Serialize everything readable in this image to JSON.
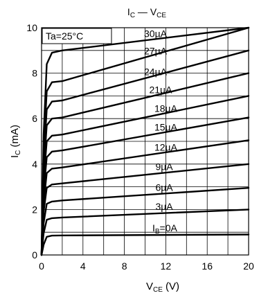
{
  "chart_data": {
    "type": "line",
    "title": "IC — VCE",
    "title_parts": {
      "main": "I",
      "main_sub": "C",
      "sep": " — V",
      "sep_sub": "CE"
    },
    "xlabel_parts": {
      "main": "V",
      "sub": "CE",
      "unit": " (V)"
    },
    "ylabel_parts": {
      "main": "I",
      "sub": "C",
      "unit": " (mA)"
    },
    "xlabel": "VCE (V)",
    "ylabel": "IC (mA)",
    "xlim": [
      0,
      20
    ],
    "ylim": [
      0,
      10
    ],
    "x_ticks": [
      "0",
      "4",
      "8",
      "12",
      "16",
      "20"
    ],
    "y_ticks": [
      "0",
      "2",
      "4",
      "6",
      "8",
      "10"
    ],
    "grid": {
      "x_step": 2,
      "y_step": 1
    },
    "condition": "Ta=25°C",
    "series": [
      {
        "name": "IB=0A",
        "label_main": "I",
        "label_sub": "B",
        "label_rest": "=0A",
        "x": [
          0,
          0.2,
          0.5,
          1,
          2,
          20
        ],
        "y": [
          0,
          0.45,
          0.8,
          0.85,
          0.86,
          0.9
        ],
        "label_x": 10.7
      },
      {
        "name": "3µA",
        "label_main": "3µA",
        "x": [
          0,
          0.2,
          0.5,
          1,
          2,
          20
        ],
        "y": [
          0,
          0.95,
          1.55,
          1.62,
          1.65,
          2.0
        ],
        "label_x": 11.0
      },
      {
        "name": "6µA",
        "label_main": "6µA",
        "x": [
          0,
          0.2,
          0.5,
          1,
          2,
          20
        ],
        "y": [
          0,
          1.4,
          2.25,
          2.35,
          2.4,
          2.95
        ],
        "label_x": 11.0
      },
      {
        "name": "9µA",
        "label_main": "9µA",
        "x": [
          0,
          0.2,
          0.5,
          1,
          2,
          20
        ],
        "y": [
          0,
          1.9,
          2.95,
          3.1,
          3.15,
          4.0
        ],
        "label_x": 11.0
      },
      {
        "name": "12µA",
        "label_main": "12µA",
        "x": [
          0,
          0.2,
          0.5,
          1,
          2,
          20
        ],
        "y": [
          0,
          2.3,
          3.6,
          3.8,
          3.85,
          5.05
        ],
        "label_x": 10.9
      },
      {
        "name": "15µA",
        "label_main": "15µA",
        "x": [
          0,
          0.2,
          0.5,
          1,
          2,
          20
        ],
        "y": [
          0,
          2.8,
          4.3,
          4.55,
          4.6,
          6.05
        ],
        "label_x": 10.9
      },
      {
        "name": "18µA",
        "label_main": "18µA",
        "x": [
          0,
          0.2,
          0.5,
          1,
          2,
          20
        ],
        "y": [
          0,
          3.3,
          5.0,
          5.25,
          5.3,
          7.0
        ],
        "label_x": 10.9
      },
      {
        "name": "21µA",
        "label_main": "21µA",
        "x": [
          0,
          0.2,
          0.5,
          1,
          2,
          20
        ],
        "y": [
          0,
          3.7,
          5.7,
          6.0,
          6.05,
          8.0
        ],
        "label_x": 10.4
      },
      {
        "name": "24µA",
        "label_main": "24µA",
        "x": [
          0,
          0.2,
          0.5,
          1,
          2,
          20
        ],
        "y": [
          0,
          4.2,
          6.4,
          6.75,
          6.8,
          9.0
        ],
        "label_x": 9.9
      },
      {
        "name": "27µA",
        "label_main": "27µA",
        "x": [
          0,
          0.2,
          0.5,
          1,
          2,
          20
        ],
        "y": [
          0,
          4.7,
          7.2,
          7.6,
          7.65,
          10.0
        ],
        "label_x": 9.9
      },
      {
        "name": "30µA",
        "label_main": "30µA",
        "x": [
          0,
          0.2,
          0.5,
          1,
          2,
          20
        ],
        "y": [
          0,
          5.3,
          8.4,
          8.9,
          9.0,
          10.0
        ],
        "label_x": 9.9
      }
    ]
  }
}
